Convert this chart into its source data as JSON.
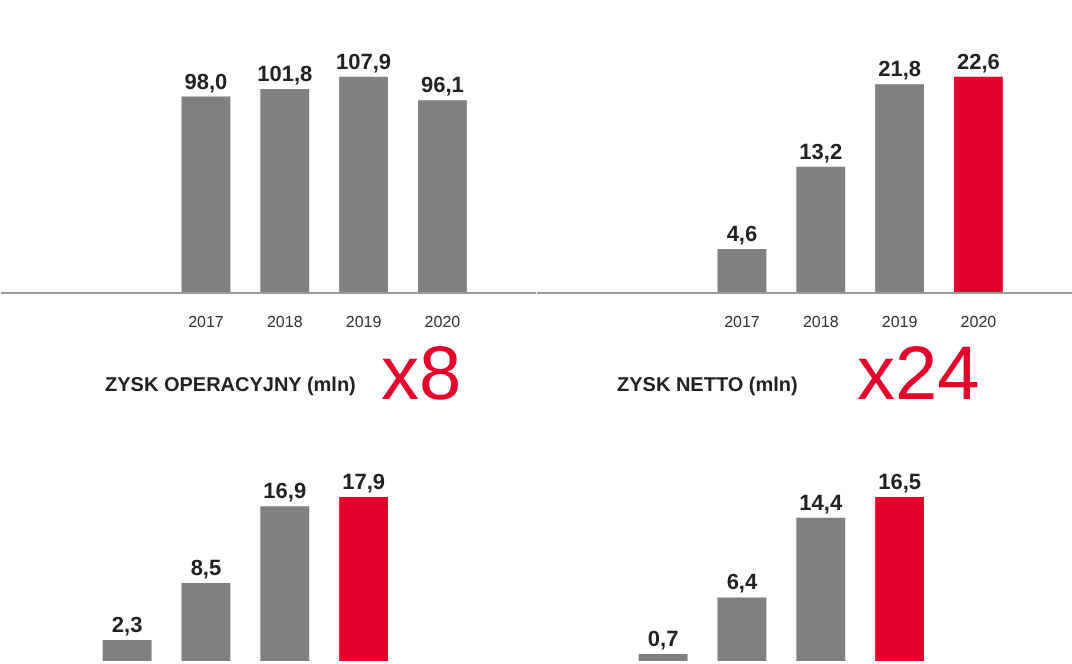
{
  "chart_data": [
    {
      "type": "bar",
      "categories": [
        "2017",
        "2018",
        "2019",
        "2020"
      ],
      "values": [
        98.0,
        101.8,
        107.9,
        96.1
      ],
      "colors": [
        "#808080",
        "#808080",
        "#808080",
        "#808080"
      ],
      "value_labels": [
        "98,0",
        "101,8",
        "107,9",
        "96,1"
      ],
      "grid": false
    },
    {
      "type": "bar",
      "categories": [
        "2017",
        "2018",
        "2019",
        "2020"
      ],
      "values": [
        4.6,
        13.2,
        21.8,
        22.6
      ],
      "colors": [
        "#808080",
        "#808080",
        "#808080",
        "#e4002b"
      ],
      "value_labels": [
        "4,6",
        "13,2",
        "21,8",
        "22,6"
      ],
      "grid": false
    },
    {
      "type": "bar",
      "title": "ZYSK OPERACYJNY (mln)",
      "annotations": [
        "x8"
      ],
      "categories": [
        null,
        null,
        null,
        null
      ],
      "values": [
        2.3,
        8.5,
        16.9,
        17.9
      ],
      "colors": [
        "#808080",
        "#808080",
        "#808080",
        "#e4002b"
      ],
      "value_labels": [
        "2,3",
        "8,5",
        "16,9",
        "17,9"
      ],
      "grid": false,
      "tick_labels": false
    },
    {
      "type": "bar",
      "title": "ZYSK NETTO (mln)",
      "annotations": [
        "x24"
      ],
      "categories": [
        null,
        null,
        null,
        null
      ],
      "values": [
        0.7,
        6.4,
        14.4,
        16.5
      ],
      "colors": [
        "#808080",
        "#808080",
        "#808080",
        "#e4002b"
      ],
      "value_labels": [
        "0,7",
        "6,4",
        "14,4",
        "16,5"
      ],
      "grid": false,
      "tick_labels": false
    }
  ]
}
